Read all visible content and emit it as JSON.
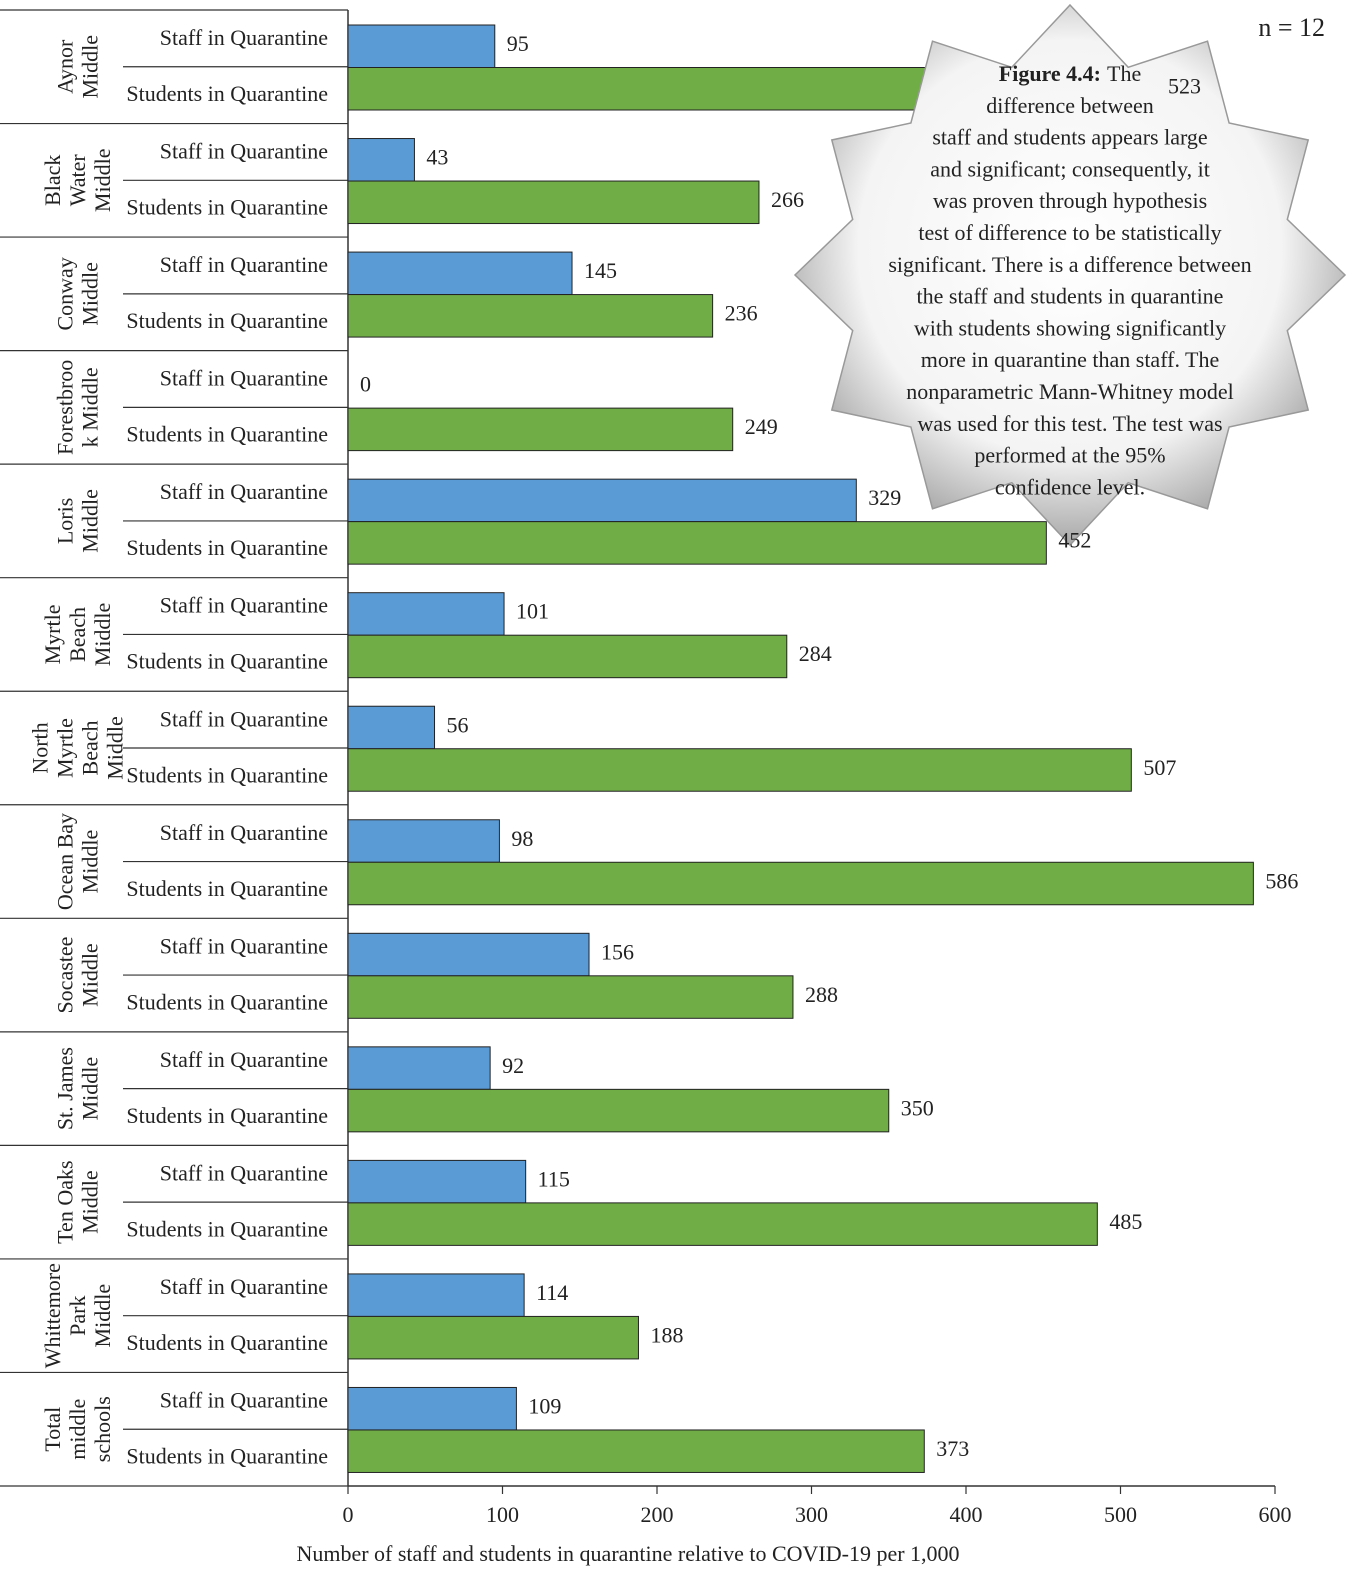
{
  "chart_data": {
    "type": "grouped-hbar",
    "categories": [
      "Aynor\nMiddle",
      "Black\nWater\nMiddle",
      "Conway\nMiddle",
      "Forestbroo\nk Middle",
      "Loris\nMiddle",
      "Myrtle\nBeach\nMiddle",
      "North\nMyrtle\nBeach\nMiddle",
      "Ocean Bay\nMiddle",
      "Socastee\nMiddle",
      "St. James\nMiddle",
      "Ten Oaks\nMiddle",
      "Whittemore\nPark\nMiddle",
      "Total\nmiddle\nschools"
    ],
    "series": [
      {
        "name": "Staff in Quarantine",
        "color": "#5b9bd5",
        "values": [
          95,
          43,
          145,
          0,
          329,
          101,
          56,
          98,
          156,
          92,
          115,
          114,
          109
        ]
      },
      {
        "name": "Students in Quarantine",
        "color": "#70ad47",
        "values": [
          523,
          266,
          236,
          249,
          452,
          284,
          507,
          586,
          288,
          350,
          485,
          188,
          373
        ]
      }
    ],
    "xlim": [
      0,
      600
    ],
    "xticks": [
      0,
      100,
      200,
      300,
      400,
      500,
      600
    ],
    "xlabel": "Number of staff and students in quarantine relative to COVID-19 per 1,000",
    "note": "n = 12",
    "annotation": {
      "label": "Figure 4.4:",
      "lines": [
        "The",
        "difference between",
        "staff and students appears large",
        "and significant; consequently, it",
        "was proven through hypothesis",
        "test of difference to be statistically",
        "significant. There is a difference between",
        "the staff and students in quarantine",
        "with students showing significantly",
        "more in quarantine than staff. The",
        "nonparametric Mann-Whitney model",
        "was used for this test. The test was",
        "performed at the 95%",
        "confidence level."
      ]
    }
  }
}
